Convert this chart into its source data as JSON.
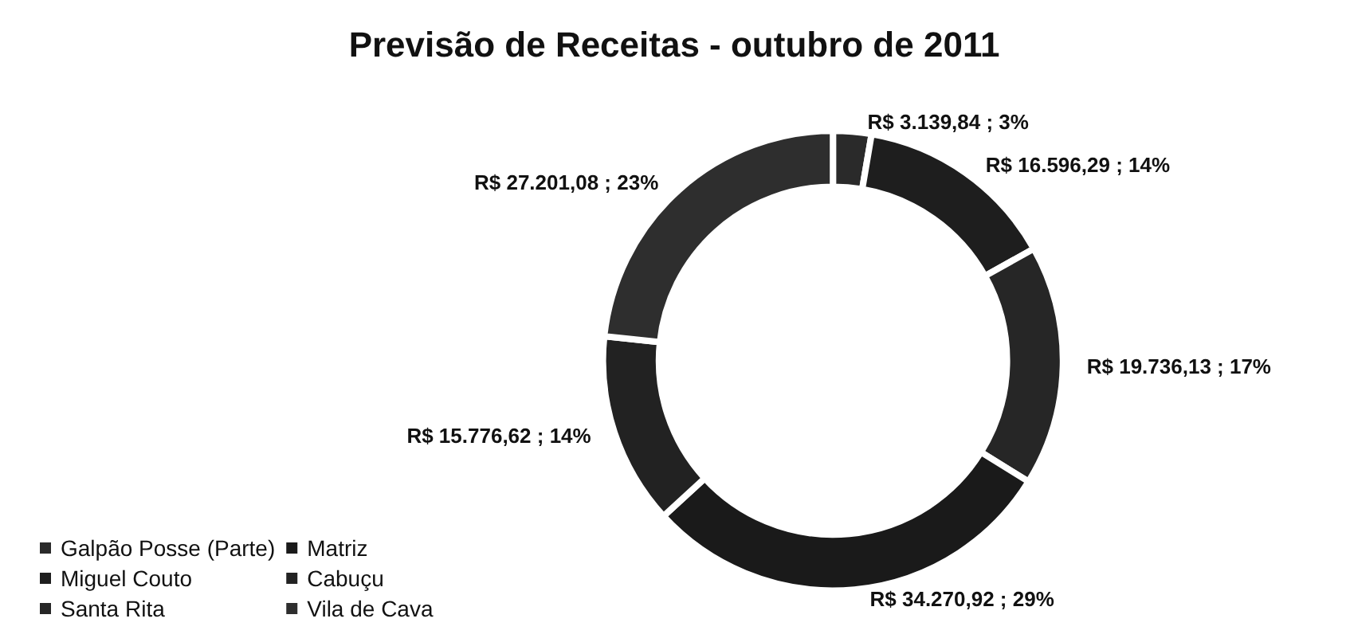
{
  "chart_data": {
    "type": "donut",
    "title": "Previsão de Receitas - outubro de 2011",
    "categories": [
      "Galpão Posse (Parte)",
      "Miguel Couto",
      "Santa Rita",
      "Matriz",
      "Cabuçu",
      "Vila de Cava"
    ],
    "values": [
      3139.84,
      16596.29,
      19736.13,
      34270.92,
      15776.62,
      27201.08
    ],
    "value_labels": [
      "R$ 3.139,84 ; 3%",
      "R$ 16.596,29 ; 14%",
      "R$ 19.736,13 ; 17%",
      "R$ 34.270,92 ; 29%",
      "R$ 15.776,62 ; 14%",
      "R$ 27.201,08 ; 23%"
    ],
    "colors": [
      "#2a2a2a",
      "#1e1e1e",
      "#262626",
      "#1a1a1a",
      "#222222",
      "#2e2e2e"
    ],
    "legend": "bottom left"
  }
}
